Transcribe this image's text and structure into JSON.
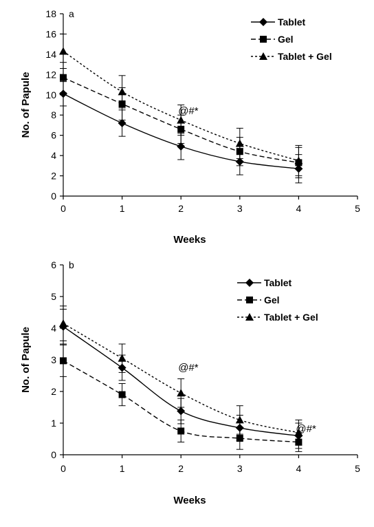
{
  "chart_data": [
    {
      "type": "line",
      "panel_label": "a",
      "xlabel": "Weeks",
      "ylabel": "No. of Papule",
      "xlim": [
        0,
        5
      ],
      "ylim": [
        0,
        18
      ],
      "x_ticks": [
        0,
        1,
        2,
        3,
        4,
        5
      ],
      "y_ticks": [
        0,
        2,
        4,
        6,
        8,
        10,
        12,
        14,
        16,
        18
      ],
      "x": [
        0,
        1,
        2,
        3,
        4
      ],
      "legend_position": "top-right",
      "series": [
        {
          "name": "Tablet",
          "marker": "diamond",
          "line": "solid",
          "values": [
            10.1,
            7.2,
            4.9,
            3.4,
            2.7
          ],
          "errors": [
            1.2,
            1.3,
            1.3,
            1.3,
            1.4
          ]
        },
        {
          "name": "Gel",
          "marker": "square",
          "line": "dashed",
          "values": [
            11.7,
            9.1,
            6.6,
            4.4,
            3.3
          ],
          "errors": [
            1.5,
            1.6,
            1.4,
            1.4,
            1.5
          ]
        },
        {
          "name": "Tablet + Gel",
          "marker": "triangle",
          "line": "dotted",
          "values": [
            14.3,
            10.3,
            7.5,
            5.2,
            3.5
          ],
          "errors": [
            1.7,
            1.6,
            1.5,
            1.5,
            1.5
          ]
        }
      ],
      "annotations": [
        {
          "text": "@#*",
          "x": 2,
          "y": 8.1
        }
      ]
    },
    {
      "type": "line",
      "panel_label": "b",
      "xlabel": "Weeks",
      "ylabel": "No. of Papule",
      "xlim": [
        0,
        5
      ],
      "ylim": [
        0,
        6
      ],
      "x_ticks": [
        0,
        1,
        2,
        3,
        4,
        5
      ],
      "y_ticks": [
        0,
        1,
        2,
        3,
        4,
        5,
        6
      ],
      "x": [
        0,
        1,
        2,
        3,
        4
      ],
      "legend_position": "top-right",
      "series": [
        {
          "name": "Tablet",
          "marker": "diamond",
          "line": "solid",
          "values": [
            4.05,
            2.75,
            1.38,
            0.85,
            0.6
          ],
          "errors": [
            0.55,
            0.4,
            0.4,
            0.4,
            0.4
          ]
        },
        {
          "name": "Gel",
          "marker": "square",
          "line": "dashed",
          "values": [
            2.97,
            1.9,
            0.75,
            0.52,
            0.4
          ],
          "errors": [
            0.5,
            0.35,
            0.35,
            0.35,
            0.3
          ]
        },
        {
          "name": "Tablet + Gel",
          "marker": "triangle",
          "line": "dotted",
          "values": [
            4.15,
            3.05,
            1.95,
            1.1,
            0.7
          ],
          "errors": [
            0.55,
            0.45,
            0.45,
            0.45,
            0.4
          ]
        }
      ],
      "annotations": [
        {
          "text": "@#*",
          "x": 2,
          "y": 2.65
        },
        {
          "text": "@#*",
          "x": 4,
          "y": 0.72
        }
      ]
    }
  ]
}
